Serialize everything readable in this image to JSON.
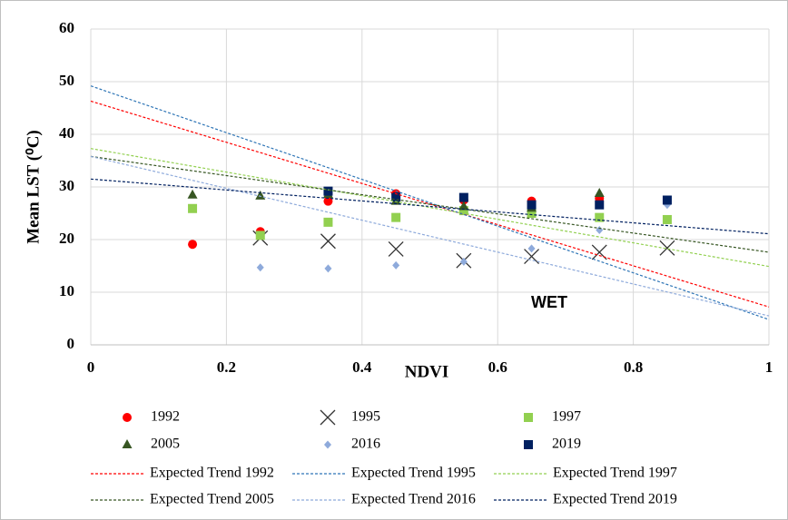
{
  "chart_data": {
    "type": "scatter",
    "xlabel": "NDVI",
    "ylabel": "Mean LST (⁰C)",
    "annotation": "WET",
    "xlim": [
      0,
      1
    ],
    "xticks": [
      0,
      0.2,
      0.4,
      0.6,
      0.8,
      1
    ],
    "ylim": [
      0,
      60
    ],
    "yticks": [
      0,
      10,
      20,
      30,
      40,
      50,
      60
    ],
    "grid": true,
    "series": [
      {
        "name": "1992",
        "color": "#ff0000",
        "marker": "circle",
        "x": [
          0.15,
          0.25,
          0.35,
          0.45,
          0.55,
          0.65,
          0.75
        ],
        "values": [
          19.1,
          21.5,
          27.3,
          28.7,
          27.5,
          27.3,
          27.8
        ]
      },
      {
        "name": "1995",
        "color": "#333333",
        "marker": "x",
        "x": [
          0.25,
          0.35,
          0.45,
          0.55,
          0.65,
          0.75,
          0.85
        ],
        "values": [
          20.3,
          19.7,
          18.2,
          16,
          16.8,
          17.6,
          18.4
        ]
      },
      {
        "name": "1997",
        "color": "#92d050",
        "marker": "square",
        "x": [
          0.15,
          0.25,
          0.35,
          0.45,
          0.55,
          0.65,
          0.75,
          0.85
        ],
        "values": [
          25.9,
          20.8,
          23.3,
          24.2,
          25.5,
          25,
          24.2,
          23.8
        ]
      },
      {
        "name": "2005",
        "color": "#375623",
        "marker": "triangle",
        "x": [
          0.15,
          0.25,
          0.35,
          0.45,
          0.55,
          0.65,
          0.75
        ],
        "values": [
          28.5,
          28.3,
          28.6,
          27.3,
          26.3,
          26,
          28.8
        ]
      },
      {
        "name": "2016",
        "color": "#8eaadb",
        "marker": "diamond",
        "x": [
          0.25,
          0.35,
          0.45,
          0.55,
          0.65,
          0.75,
          0.85
        ],
        "values": [
          14.7,
          14.5,
          15.1,
          15.8,
          18.3,
          21.8,
          26.6
        ]
      },
      {
        "name": "2019",
        "color": "#002060",
        "marker": "square",
        "x": [
          0.35,
          0.45,
          0.55,
          0.65,
          0.75,
          0.85
        ],
        "values": [
          29.2,
          28.1,
          28,
          26.6,
          26.6,
          27.5
        ]
      },
      {
        "name": "Expected Trend 1992",
        "color": "#ff0000",
        "marker": "dashed-line",
        "x": [
          0,
          1
        ],
        "values": [
          46.3,
          7.2
        ]
      },
      {
        "name": "Expected Trend 1995",
        "color": "#2e75b6",
        "marker": "dashed-line",
        "x": [
          0,
          1
        ],
        "values": [
          49.2,
          4.8
        ]
      },
      {
        "name": "Expected Trend 1997",
        "color": "#92d050",
        "marker": "dashed-line",
        "x": [
          0,
          1
        ],
        "values": [
          37.3,
          14.9
        ]
      },
      {
        "name": "Expected Trend 2005",
        "color": "#375623",
        "marker": "dashed-line",
        "x": [
          0,
          1
        ],
        "values": [
          35.8,
          17.6
        ]
      },
      {
        "name": "Expected Trend 2016",
        "color": "#8eaadb",
        "marker": "dashed-line",
        "x": [
          0,
          1
        ],
        "values": [
          35.8,
          5.5
        ]
      },
      {
        "name": "Expected Trend 2019",
        "color": "#002060",
        "marker": "dashed-line",
        "x": [
          0,
          1
        ],
        "values": [
          31.5,
          21.1
        ]
      }
    ]
  }
}
